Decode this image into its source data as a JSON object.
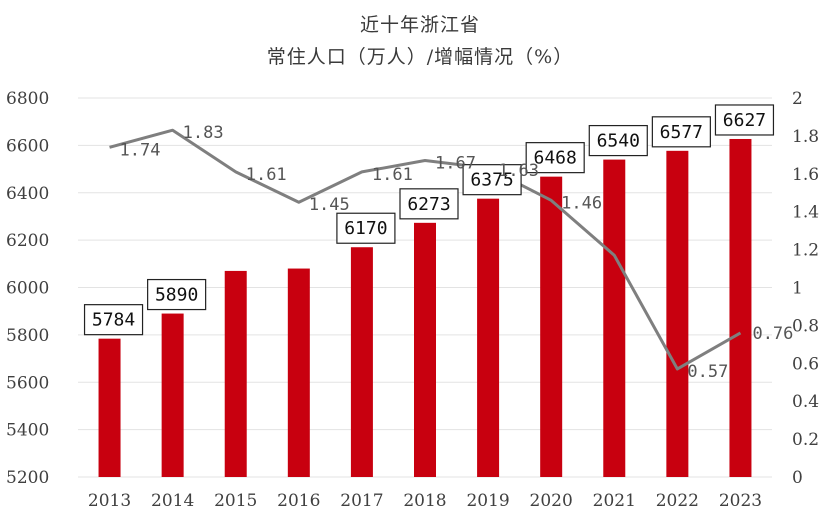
{
  "chart_data": {
    "type": "bar+line",
    "title": "近十年浙江省",
    "subtitle": "常住人口（万人）/增幅情况（%）",
    "categories": [
      "2013",
      "2014",
      "2015",
      "2016",
      "2017",
      "2018",
      "2019",
      "2020",
      "2021",
      "2022",
      "2023"
    ],
    "series": [
      {
        "name": "",
        "kind": "bar",
        "axis": "left",
        "color": "#c8000f",
        "values": [
          5784,
          5890,
          6070,
          6080,
          6170,
          6273,
          6375,
          6468,
          6540,
          6577,
          6627
        ],
        "data_labels": [
          "5784",
          "5890",
          "",
          "",
          "6170",
          "6273",
          "6375",
          "6468",
          "6540",
          "6577",
          "6627"
        ]
      },
      {
        "name": "",
        "kind": "line",
        "axis": "right",
        "color": "#7f7f7f",
        "values": [
          1.74,
          1.83,
          1.61,
          1.45,
          1.61,
          1.67,
          1.63,
          1.46,
          1.17,
          0.57,
          0.76
        ],
        "data_labels": [
          "1.74",
          "1.83",
          "1.61",
          "1.45",
          "1.61",
          "1.67",
          "1.63",
          "1.46",
          "",
          "0.57",
          "0.76"
        ]
      }
    ],
    "y_left": {
      "min": 5200,
      "max": 6800,
      "ticks": [
        "5200",
        "5400",
        "5600",
        "5800",
        "6000",
        "6200",
        "6400",
        "6600",
        "6800"
      ]
    },
    "y_right": {
      "min": 0,
      "max": 2,
      "ticks": [
        "0",
        "0.2",
        "0.4",
        "0.6",
        "0.8",
        "1",
        "1.2",
        "1.4",
        "1.6",
        "1.8",
        "2"
      ]
    },
    "grid": true,
    "legend": "none"
  }
}
